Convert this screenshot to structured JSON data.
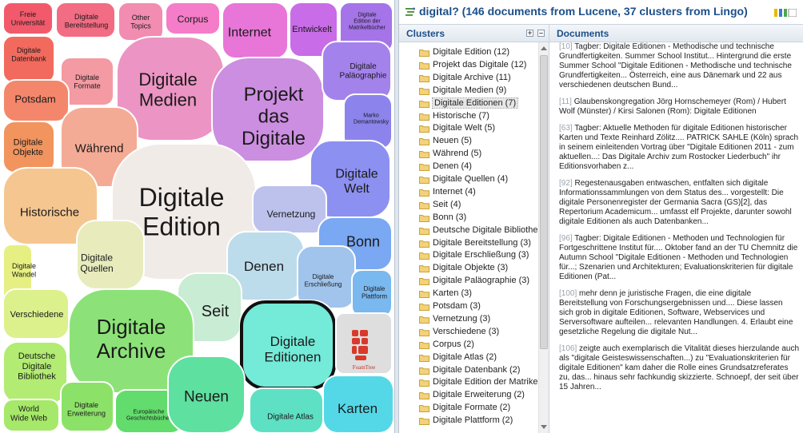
{
  "visualization": {
    "logo_text": "FoamTree",
    "cells": [
      {
        "id": "freie-universitat",
        "label": "Freie\nUniversität",
        "fill": "#f25a6b"
      },
      {
        "id": "digitale-bereitstellung",
        "label": "Digitale\nBereitstellung",
        "fill": "#f26c84"
      },
      {
        "id": "other-topics",
        "label": "Other\nTopics",
        "fill": "#f28cb0"
      },
      {
        "id": "corpus",
        "label": "Corpus",
        "fill": "#f47cc8"
      },
      {
        "id": "internet",
        "label": "Internet",
        "fill": "#e875d8"
      },
      {
        "id": "entwickelt",
        "label": "Entwickelt",
        "fill": "#c96ce8"
      },
      {
        "id": "digitale-edition-matrikel",
        "label": "Digitale\nEdition der\nMatrikelbücher",
        "fill": "#a474e8"
      },
      {
        "id": "digitale-datenbank",
        "label": "Digitale\nDatenbank",
        "fill": "#f26a5e"
      },
      {
        "id": "digitale-formate",
        "label": "Digitale\nFormate",
        "fill": "#f49aa2"
      },
      {
        "id": "digitale-medien",
        "label": "Digitale\nMedien",
        "fill": "#ec94c4"
      },
      {
        "id": "projekt-das-digitale",
        "label": "Projekt\ndas\nDigitale",
        "fill": "#cc8ee0"
      },
      {
        "id": "digitale-palaeographie",
        "label": "Digitale\nPaläographie",
        "fill": "#a482ec"
      },
      {
        "id": "potsdam",
        "label": "Potsdam",
        "fill": "#f4876b"
      },
      {
        "id": "marko-demantowsky",
        "label": "Marko\nDemantowsky",
        "fill": "#8c84ec"
      },
      {
        "id": "digitale-objekte",
        "label": "Digitale\nObjekte",
        "fill": "#f2945e"
      },
      {
        "id": "wahrend",
        "label": "Während",
        "fill": "#f4ab95"
      },
      {
        "id": "digitale-welt",
        "label": "Digitale\nWelt",
        "fill": "#8c90f0"
      },
      {
        "id": "digitale-edition",
        "label": "Digitale\nEdition",
        "fill": "#f1ebe8"
      },
      {
        "id": "historische",
        "label": "Historische",
        "fill": "#f6c690"
      },
      {
        "id": "vernetzung",
        "label": "Vernetzung",
        "fill": "#bcc2ec"
      },
      {
        "id": "bonn",
        "label": "Bonn",
        "fill": "#7aa8f2"
      },
      {
        "id": "digitale-quellen",
        "label": "Digitale\nQuellen",
        "fill": "#e8ecbc"
      },
      {
        "id": "denen",
        "label": "Denen",
        "fill": "#bcdcec"
      },
      {
        "id": "digitale-erschliessung",
        "label": "Digitale\nErschließung",
        "fill": "#a0c4ec"
      },
      {
        "id": "digitale-wandel",
        "label": "Digitale\nWandel",
        "fill": "#e6f082"
      },
      {
        "id": "digitale-plattform",
        "label": "Digitale\nPlattform",
        "fill": "#7ab8f0"
      },
      {
        "id": "verschiedene",
        "label": "Verschiedene",
        "fill": "#dcf08c"
      },
      {
        "id": "seit",
        "label": "Seit",
        "fill": "#c8ecd4"
      },
      {
        "id": "digitale-archive",
        "label": "Digitale\nArchive",
        "fill": "#8ce278"
      },
      {
        "id": "digitale-editionen",
        "label": "Digitale\nEditionen",
        "fill": "#74ead8"
      },
      {
        "id": "deutsche-digitale-bibliothek",
        "label": "Deutsche\nDigitale\nBibliothek",
        "fill": "#b2ec72"
      },
      {
        "id": "world-wide-web",
        "label": "World\nWide Web",
        "fill": "#a6e86a"
      },
      {
        "id": "digitale-erweiterung",
        "label": "Digitale\nErweiterung",
        "fill": "#8ce268"
      },
      {
        "id": "europaische-geschichtsbucher",
        "label": "Europäische\nGeschichtsbücher",
        "fill": "#62dc6c"
      },
      {
        "id": "neuen",
        "label": "Neuen",
        "fill": "#5ee0a0"
      },
      {
        "id": "digitale-atlas",
        "label": "Digitale Atlas",
        "fill": "#5ee0c4"
      },
      {
        "id": "karten",
        "label": "Karten",
        "fill": "#54d8e8"
      }
    ]
  },
  "header": {
    "title": "digital? (146 documents from Lucene, 37 clusters from Lingo)"
  },
  "clusters_panel": {
    "title": "Clusters",
    "selected_index": 4,
    "items": [
      "Digitale Edition (12)",
      "Projekt das Digitale (12)",
      "Digitale Archive (11)",
      "Digitale Medien (9)",
      "Digitale Editionen (7)",
      "Historische (7)",
      "Digitale Welt (5)",
      "Neuen (5)",
      "Während (5)",
      "Denen (4)",
      "Digitale Quellen (4)",
      "Internet (4)",
      "Seit (4)",
      "Bonn (3)",
      "Deutsche Digitale Bibliothek",
      "Digitale Bereitstellung (3)",
      "Digitale Erschließung (3)",
      "Digitale Objekte (3)",
      "Digitale Paläographie (3)",
      "Karten (3)",
      "Potsdam (3)",
      "Vernetzung (3)",
      "Verschiedene (3)",
      "Corpus (2)",
      "Digitale Atlas (2)",
      "Digitale Datenbank (2)",
      "Digitale Edition der Matrikelb",
      "Digitale Erweiterung (2)",
      "Digitale Formate (2)",
      "Digitale Plattform (2)"
    ]
  },
  "documents_panel": {
    "title": "Documents",
    "documents": [
      {
        "num": "[10]",
        "text": "Tagber: Digitale Editionen - Methodische und technische Grundfertigkeiten. Summer School Institut... Hintergrund die erste Summer School \"Digitale Editionen - Methodische und technische Grundfertigkeiten... Österreich, eine aus Dänemark und 22 aus verschiedenen deutschen Bund..."
      },
      {
        "num": "[11]",
        "text": "Glaubenskongregation Jörg Hornschemeyer (Rom) / Hubert Wolf (Münster) / Kirsi Salonen (Rom): Digitale Editionen"
      },
      {
        "num": "[63]",
        "text": "Tagber: Aktuelle Methoden für digitale Editionen historischer Karten und Texte Reinhard Zölitz.... PATRICK SAHLE (Köln) sprach in seinem einleitenden Vortrag über \"Digitale Editionen 2011 - zum aktuellen...: Das Digitale Archiv zum Rostocker Liederbuch\" ihr Editionsvorhaben z..."
      },
      {
        "num": "[92]",
        "text": "Regestenausgaben entwaschen, entfalten sich digitale Informationssammlungen von dem Status des... vorgestellt: Die digitale Personenregister der Germania Sacra (GS)[2], das Repertorium Academicum... umfasst elf Projekte, darunter sowohl digitale Editionen als auch Datenbanken..."
      },
      {
        "num": "[96]",
        "text": "Tagber: Digitale Editionen - Methoden und Technologien für Fortgeschrittene Institut für.... Oktober fand an der TU Chemnitz die Autumn School \"Digitale Editionen - Methoden und Technologien für...; Szenarien und Architekturen; Evaluationskriterien für digitale Editionen (Pat..."
      },
      {
        "num": "[100]",
        "text": "mehr denn je juristische Fragen, die eine digitale Bereitstellung von Forschungsergebnissen und.... Diese lassen sich grob in digitale Editionen, Software, Webservices und Serversoftware aufteilen... relevanten Handlungen. 4. Erlaubt eine gesetzliche Regelung die digitale Nut..."
      },
      {
        "num": "[106]",
        "text": "zeigte auch exemplarisch die Vitalität dieses hierzulande auch als \"digitale Geisteswissenschaften...) zu \"Evaluationskriterien für digitale Editionen\" kam daher die Rolle eines Grundsatzreferates zu, das... hinaus sehr fachkundig skizzierte. Schnoepf, der seit über 15 Jahren..."
      }
    ]
  }
}
